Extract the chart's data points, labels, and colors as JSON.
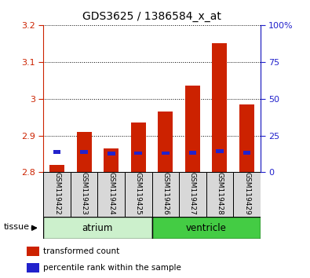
{
  "title": "GDS3625 / 1386584_x_at",
  "samples": [
    "GSM119422",
    "GSM119423",
    "GSM119424",
    "GSM119425",
    "GSM119426",
    "GSM119427",
    "GSM119428",
    "GSM119429"
  ],
  "red_values": [
    2.82,
    2.91,
    2.865,
    2.935,
    2.965,
    3.035,
    3.15,
    2.985
  ],
  "blue_values": [
    2.856,
    2.855,
    2.851,
    2.852,
    2.852,
    2.853,
    2.857,
    2.853
  ],
  "ymin": 2.8,
  "ymax": 3.2,
  "yticks_left": [
    2.8,
    2.9,
    3.0,
    3.1,
    3.2
  ],
  "yticks_right": [
    0,
    25,
    50,
    75,
    100
  ],
  "groups": [
    {
      "label": "atrium",
      "start": 0,
      "end": 4,
      "color": "#ccf0cc"
    },
    {
      "label": "ventricle",
      "start": 4,
      "end": 8,
      "color": "#44cc44"
    }
  ],
  "tissue_label": "tissue",
  "bar_width": 0.55,
  "blue_bar_width": 0.28,
  "blue_bar_height": 0.01,
  "red_color": "#cc2200",
  "blue_color": "#2222cc",
  "bg_color": "#d8d8d8",
  "plot_bg": "#ffffff",
  "tick_label_color_left": "#cc2200",
  "tick_label_color_right": "#2222cc",
  "legend_items": [
    {
      "label": "transformed count",
      "color": "#cc2200"
    },
    {
      "label": "percentile rank within the sample",
      "color": "#2222cc"
    }
  ]
}
